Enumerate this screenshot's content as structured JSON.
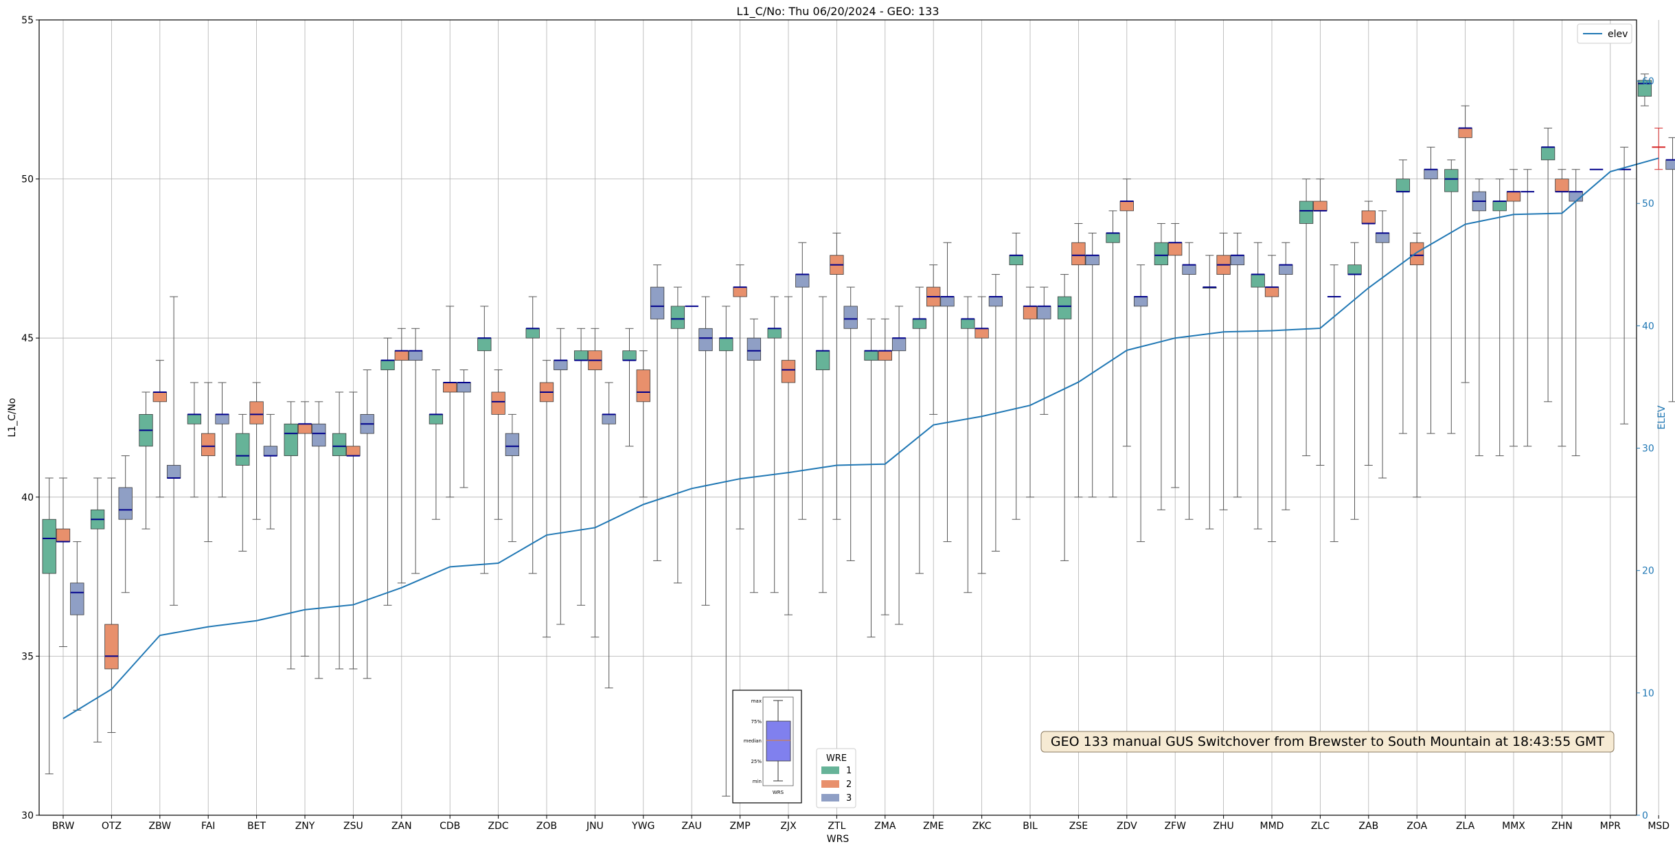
{
  "chart_data": {
    "type": "box",
    "title": "L1_C/No: Thu 06/20/2024 - GEO: 133",
    "xlabel": "WRS",
    "ylabel": "L1_C/No",
    "y2label": "ELEV",
    "ylim": [
      30,
      55
    ],
    "y2lim": [
      0,
      65
    ],
    "yticks": [
      30,
      35,
      40,
      45,
      50,
      55
    ],
    "y2ticks": [
      0,
      10,
      20,
      30,
      40,
      50,
      60
    ],
    "grid": true,
    "colors": {
      "1": "#66b398",
      "2": "#e8906c",
      "3": "#8f9fc5",
      "elev": "#1f77b4",
      "median": "#00008b",
      "msd": "#d62728"
    },
    "categories": [
      "BRW",
      "OTZ",
      "ZBW",
      "FAI",
      "BET",
      "ZNY",
      "ZSU",
      "ZAN",
      "CDB",
      "ZDC",
      "ZOB",
      "JNU",
      "YWG",
      "ZAU",
      "ZMP",
      "ZJX",
      "ZTL",
      "ZMA",
      "ZME",
      "ZKC",
      "BIL",
      "ZSE",
      "ZDV",
      "ZFW",
      "ZHU",
      "MMD",
      "ZLC",
      "ZAB",
      "ZOA",
      "ZLA",
      "MMX",
      "ZHN",
      "MPR",
      "MSD"
    ],
    "series": [
      {
        "name": "1",
        "boxes": [
          [
            31.3,
            37.6,
            38.7,
            39.3,
            40.6
          ],
          [
            32.3,
            39.0,
            39.3,
            39.6,
            40.6
          ],
          [
            39.0,
            41.6,
            42.1,
            42.6,
            43.3
          ],
          [
            40.0,
            42.3,
            42.6,
            42.6,
            43.6
          ],
          [
            38.3,
            41.0,
            41.3,
            42.0,
            42.6
          ],
          [
            34.6,
            41.3,
            42.0,
            42.3,
            43.0
          ],
          [
            34.6,
            41.3,
            41.6,
            42.0,
            43.3
          ],
          [
            36.6,
            44.0,
            44.3,
            44.3,
            45.0
          ],
          [
            39.3,
            42.3,
            42.6,
            42.6,
            44.0
          ],
          [
            37.6,
            44.6,
            45.0,
            45.0,
            46.0
          ],
          [
            37.6,
            45.0,
            45.3,
            45.3,
            46.3
          ],
          [
            36.6,
            44.3,
            44.3,
            44.6,
            45.3
          ],
          [
            41.6,
            44.3,
            44.3,
            44.6,
            45.3
          ],
          [
            37.3,
            45.3,
            45.6,
            46.0,
            46.6
          ],
          [
            30.6,
            44.6,
            45.0,
            45.0,
            46.0
          ],
          [
            37.0,
            45.0,
            45.3,
            45.3,
            46.3
          ],
          [
            37.0,
            44.0,
            44.6,
            44.6,
            46.3
          ],
          [
            35.6,
            44.3,
            44.6,
            44.6,
            45.6
          ],
          [
            37.6,
            45.3,
            45.6,
            45.6,
            46.6
          ],
          [
            37.0,
            45.3,
            45.6,
            45.6,
            46.3
          ],
          [
            39.3,
            47.3,
            47.6,
            47.6,
            48.3
          ],
          [
            38.0,
            45.6,
            46.0,
            46.3,
            47.0
          ],
          [
            40.0,
            48.0,
            48.3,
            48.3,
            49.0
          ],
          [
            39.6,
            47.3,
            47.6,
            48.0,
            48.6
          ],
          [
            39.0,
            46.6,
            46.6,
            46.6,
            47.6
          ],
          [
            39.0,
            46.6,
            47.0,
            47.0,
            48.0
          ],
          [
            41.3,
            48.6,
            49.0,
            49.3,
            50.0
          ],
          [
            39.3,
            47.0,
            47.0,
            47.3,
            48.0
          ],
          [
            42.0,
            49.6,
            49.6,
            50.0,
            50.6
          ],
          [
            42.0,
            49.6,
            50.0,
            50.3,
            50.6
          ],
          [
            41.3,
            49.0,
            49.3,
            49.3,
            50.0
          ],
          [
            43.0,
            50.6,
            51.0,
            51.0,
            51.6
          ],
          [
            null,
            null,
            50.3,
            null,
            null
          ],
          [
            52.3,
            52.6,
            53.0,
            53.1,
            53.3
          ]
        ]
      },
      {
        "name": "2",
        "boxes": [
          [
            35.3,
            38.6,
            38.6,
            39.0,
            40.6
          ],
          [
            32.6,
            34.6,
            35.0,
            36.0,
            40.6
          ],
          [
            40.0,
            43.0,
            43.3,
            43.3,
            44.3
          ],
          [
            38.6,
            41.3,
            41.6,
            42.0,
            43.6
          ],
          [
            39.3,
            42.3,
            42.6,
            43.0,
            43.6
          ],
          [
            35.0,
            42.0,
            42.3,
            42.3,
            43.0
          ],
          [
            34.6,
            41.3,
            41.3,
            41.6,
            43.3
          ],
          [
            37.3,
            44.3,
            44.6,
            44.6,
            45.3
          ],
          [
            40.0,
            43.3,
            43.6,
            43.6,
            46.0
          ],
          [
            39.3,
            42.6,
            43.0,
            43.3,
            44.0
          ],
          [
            35.6,
            43.0,
            43.3,
            43.6,
            44.3
          ],
          [
            35.6,
            44.0,
            44.3,
            44.6,
            45.3
          ],
          [
            40.0,
            43.0,
            43.3,
            44.0,
            44.6
          ],
          [
            null,
            null,
            46.0,
            null,
            null
          ],
          [
            39.0,
            46.3,
            46.6,
            46.6,
            47.3
          ],
          [
            36.3,
            43.6,
            44.0,
            44.3,
            46.3
          ],
          [
            39.3,
            47.0,
            47.3,
            47.6,
            48.3
          ],
          [
            36.3,
            44.3,
            44.6,
            44.6,
            45.6
          ],
          [
            42.6,
            46.0,
            46.3,
            46.6,
            47.3
          ],
          [
            37.6,
            45.0,
            45.3,
            45.3,
            46.3
          ],
          [
            40.0,
            45.6,
            46.0,
            46.0,
            46.6
          ],
          [
            40.0,
            47.3,
            47.6,
            48.0,
            48.6
          ],
          [
            41.6,
            49.0,
            49.3,
            49.3,
            50.0
          ],
          [
            40.3,
            47.6,
            48.0,
            48.0,
            48.6
          ],
          [
            39.6,
            47.0,
            47.3,
            47.6,
            48.3
          ],
          [
            38.6,
            46.3,
            46.6,
            46.6,
            47.6
          ],
          [
            41.0,
            49.0,
            49.0,
            49.3,
            50.0
          ],
          [
            41.0,
            48.6,
            48.6,
            49.0,
            49.3
          ],
          [
            40.0,
            47.3,
            47.6,
            48.0,
            48.3
          ],
          [
            43.6,
            51.3,
            51.6,
            51.6,
            52.3
          ],
          [
            41.6,
            49.3,
            49.6,
            49.6,
            50.3
          ],
          [
            41.6,
            49.6,
            49.6,
            50.0,
            50.3
          ],
          [
            null,
            null,
            null,
            null,
            null
          ],
          [
            50.3,
            null,
            51.0,
            null,
            51.6
          ]
        ]
      },
      {
        "name": "3",
        "boxes": [
          [
            33.3,
            36.3,
            37.0,
            37.3,
            38.6
          ],
          [
            37.0,
            39.3,
            39.6,
            40.3,
            41.3
          ],
          [
            36.6,
            40.6,
            40.6,
            41.0,
            46.3
          ],
          [
            40.0,
            42.3,
            42.6,
            42.6,
            43.6
          ],
          [
            39.0,
            41.3,
            41.3,
            41.6,
            42.6
          ],
          [
            34.3,
            41.6,
            42.0,
            42.3,
            43.0
          ],
          [
            34.3,
            42.0,
            42.3,
            42.6,
            44.0
          ],
          [
            37.6,
            44.3,
            44.6,
            44.6,
            45.3
          ],
          [
            40.3,
            43.3,
            43.6,
            43.6,
            44.0
          ],
          [
            38.6,
            41.3,
            41.6,
            42.0,
            42.6
          ],
          [
            36.0,
            44.0,
            44.3,
            44.3,
            45.3
          ],
          [
            34.0,
            42.3,
            42.6,
            42.6,
            43.6
          ],
          [
            38.0,
            45.6,
            46.0,
            46.6,
            47.3
          ],
          [
            36.6,
            44.6,
            45.0,
            45.3,
            46.3
          ],
          [
            37.0,
            44.3,
            44.6,
            45.0,
            45.6
          ],
          [
            39.3,
            46.6,
            47.0,
            47.0,
            48.0
          ],
          [
            38.0,
            45.3,
            45.6,
            46.0,
            46.6
          ],
          [
            36.0,
            44.6,
            45.0,
            45.0,
            46.0
          ],
          [
            38.6,
            46.0,
            46.3,
            46.3,
            48.0
          ],
          [
            38.3,
            46.0,
            46.3,
            46.3,
            47.0
          ],
          [
            42.6,
            45.6,
            46.0,
            46.0,
            46.6
          ],
          [
            40.0,
            47.3,
            47.6,
            47.6,
            48.3
          ],
          [
            38.6,
            46.0,
            46.3,
            46.3,
            47.3
          ],
          [
            39.3,
            47.0,
            47.3,
            47.3,
            48.0
          ],
          [
            40.0,
            47.3,
            47.6,
            47.6,
            48.3
          ],
          [
            39.6,
            47.0,
            47.3,
            47.3,
            48.0
          ],
          [
            38.6,
            null,
            46.3,
            null,
            47.3
          ],
          [
            40.6,
            48.0,
            48.3,
            48.3,
            49.0
          ],
          [
            42.0,
            50.0,
            50.3,
            50.3,
            51.0
          ],
          [
            41.3,
            49.0,
            49.3,
            49.6,
            50.0
          ],
          [
            41.6,
            null,
            49.6,
            null,
            50.3
          ],
          [
            41.3,
            49.3,
            49.6,
            49.6,
            50.3
          ],
          [
            42.3,
            null,
            50.3,
            null,
            51.0
          ],
          [
            43.0,
            50.3,
            50.6,
            50.6,
            51.3
          ]
        ]
      }
    ],
    "elev": {
      "name": "elev",
      "values": [
        7.9,
        10.3,
        14.7,
        15.4,
        15.9,
        16.8,
        17.2,
        18.6,
        20.3,
        20.6,
        22.9,
        23.5,
        25.4,
        26.7,
        27.5,
        28.0,
        28.6,
        28.7,
        31.9,
        32.6,
        33.5,
        35.4,
        38.0,
        39.0,
        39.5,
        39.6,
        39.8,
        43.1,
        46.0,
        48.3,
        49.1,
        49.2,
        52.6,
        53.7
      ]
    },
    "legend_elev": {
      "label": "elev",
      "location": "top-right"
    },
    "legend_wre": {
      "title": "WRE",
      "entries": [
        "1",
        "2",
        "3"
      ]
    },
    "box_guide": {
      "labels": [
        "max",
        "75%",
        "median",
        "25%",
        "min"
      ],
      "xlabel": "WRS"
    },
    "annotation": "GEO 133 manual GUS Switchover from Brewster to South Mountain at 18:43:55 GMT"
  }
}
